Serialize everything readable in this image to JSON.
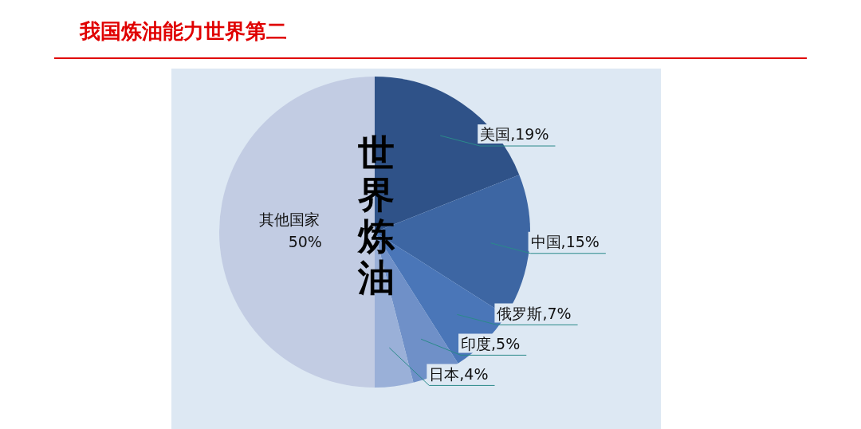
{
  "chart_data": {
    "type": "pie",
    "title": "我国炼油能力世界第二",
    "categories": [
      "美国",
      "中国",
      "俄罗斯",
      "印度",
      "日本",
      "其他国家"
    ],
    "values": [
      19,
      15,
      7,
      5,
      4,
      50
    ],
    "value_labels": [
      "19%",
      "15%",
      "7%",
      "5%",
      "4%",
      "50%"
    ],
    "colors": [
      "#2f5288",
      "#3d66a3",
      "#4a76b8",
      "#6f90c8",
      "#9ab0d8",
      "#c2cce3"
    ],
    "annotations": [
      "世界炼油"
    ],
    "legend": false
  }
}
